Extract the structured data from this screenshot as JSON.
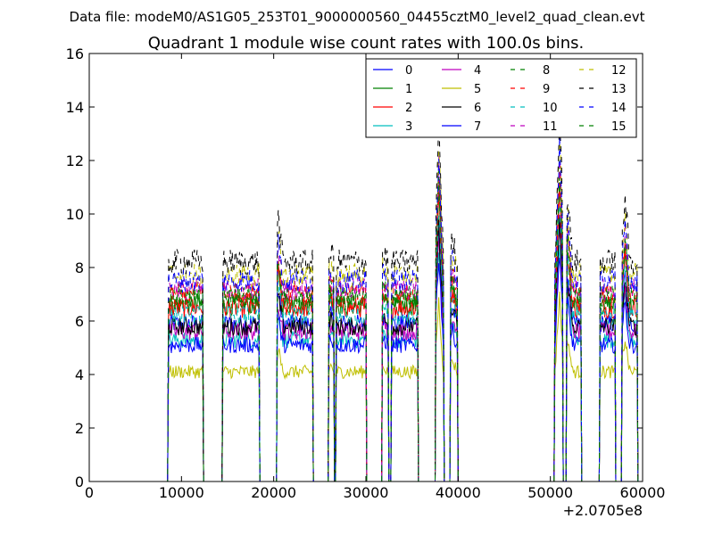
{
  "chart_data": {
    "type": "line",
    "suptitle": "Data file: modeM0/AS1G05_253T01_9000000560_04455cztM0_level2_quad_clean.evt",
    "title": "Quadrant 1 module wise count rates with 100.0s bins.",
    "xlabel": "",
    "ylabel": "",
    "xlim": [
      0,
      60000
    ],
    "ylim": [
      0,
      16
    ],
    "x_offset_label": "+2.0705e8",
    "xticks": [
      0,
      10000,
      20000,
      30000,
      40000,
      50000,
      60000
    ],
    "xtick_labels": [
      "0",
      "10000",
      "20000",
      "30000",
      "40000",
      "50000",
      "60000"
    ],
    "yticks": [
      0,
      2,
      4,
      6,
      8,
      10,
      12,
      14,
      16
    ],
    "ytick_labels": [
      "0",
      "2",
      "4",
      "6",
      "8",
      "10",
      "12",
      "14",
      "16"
    ],
    "grid": false,
    "legend_position": "top-right",
    "legend_columns": 4,
    "series": [
      {
        "name": "0",
        "color": "#0000ff",
        "dash": "solid",
        "level": 5.9
      },
      {
        "name": "1",
        "color": "#008000",
        "dash": "solid",
        "level": 6.6
      },
      {
        "name": "2",
        "color": "#ff0000",
        "dash": "solid",
        "level": 6.5
      },
      {
        "name": "3",
        "color": "#00bfbf",
        "dash": "solid",
        "level": 5.3
      },
      {
        "name": "4",
        "color": "#bf00bf",
        "dash": "solid",
        "level": 5.6
      },
      {
        "name": "5",
        "color": "#bfbf00",
        "dash": "solid",
        "level": 4.1
      },
      {
        "name": "6",
        "color": "#000000",
        "dash": "solid",
        "level": 5.8
      },
      {
        "name": "7",
        "color": "#0000ff",
        "dash": "solid",
        "level": 5.1
      },
      {
        "name": "8",
        "color": "#008000",
        "dash": "dashed",
        "level": 6.9
      },
      {
        "name": "9",
        "color": "#ff0000",
        "dash": "dashed",
        "level": 7.0
      },
      {
        "name": "10",
        "color": "#00bfbf",
        "dash": "dashed",
        "level": 6.2
      },
      {
        "name": "11",
        "color": "#bf00bf",
        "dash": "dashed",
        "level": 7.2
      },
      {
        "name": "12",
        "color": "#bfbf00",
        "dash": "dashed",
        "level": 7.7
      },
      {
        "name": "13",
        "color": "#000000",
        "dash": "dashed",
        "level": 8.2
      },
      {
        "name": "14",
        "color": "#0000ff",
        "dash": "dashed",
        "level": 7.5
      },
      {
        "name": "15",
        "color": "#008000",
        "dash": "dashed",
        "level": 6.8
      }
    ],
    "segments": [
      [
        8600,
        12300
      ],
      [
        14500,
        18400
      ],
      [
        20400,
        24200
      ],
      [
        26000,
        26500
      ],
      [
        26800,
        30000
      ],
      [
        31800,
        32400
      ],
      [
        32800,
        35600
      ],
      [
        37600,
        38400
      ],
      [
        39200,
        39900
      ],
      [
        50500,
        51300
      ],
      [
        51800,
        53300
      ],
      [
        55400,
        57000
      ],
      [
        57800,
        59400
      ]
    ],
    "spikes": [
      {
        "x": 20500,
        "factor": 1.2
      },
      {
        "x": 26200,
        "factor": 1.05
      },
      {
        "x": 31900,
        "factor": 1.05
      },
      {
        "x": 37900,
        "factor": 1.65
      },
      {
        "x": 39400,
        "factor": 1.1
      },
      {
        "x": 51000,
        "factor": 1.7
      },
      {
        "x": 51900,
        "factor": 1.3
      },
      {
        "x": 58100,
        "factor": 1.3
      }
    ]
  }
}
